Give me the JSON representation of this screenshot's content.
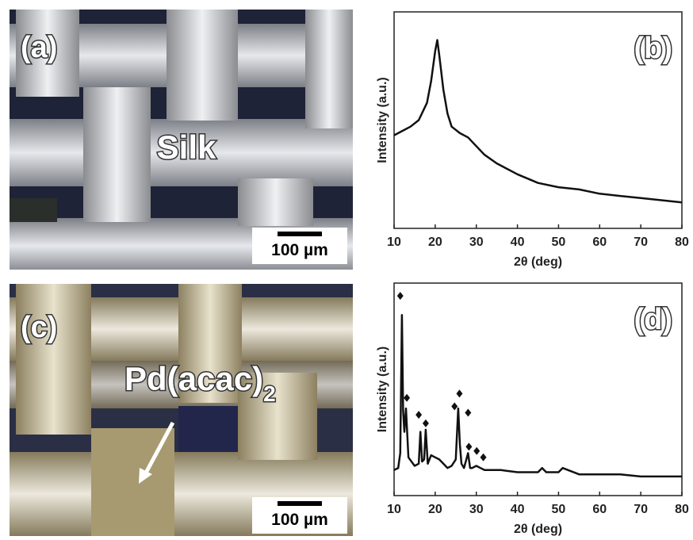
{
  "panels": [
    {
      "panel_label": "(a)",
      "text": "Silk",
      "scale_bar": "100 µm"
    },
    {
      "panel_label": "(c)",
      "text": "Pd(acac)",
      "subscript": "2",
      "scale_bar": "100 µm"
    }
  ],
  "chart_data": [
    {
      "type": "line",
      "panel_label": "(b)",
      "x_label": "2θ (deg)",
      "y_label": "Intensity (a.u.)",
      "x": [
        10,
        12,
        14,
        16,
        18,
        19,
        20,
        20.5,
        21,
        22,
        23,
        24,
        26,
        28,
        30,
        32,
        35,
        40,
        45,
        50,
        55,
        60,
        65,
        70,
        75,
        80
      ],
      "series": [
        {
          "color": "#111111",
          "values": [
            43,
            45,
            47,
            50,
            58,
            68,
            82,
            87,
            80,
            64,
            53,
            47,
            44,
            42,
            38,
            34,
            30,
            25,
            21,
            19,
            18,
            16,
            15,
            14,
            13,
            12
          ]
        }
      ],
      "xlim": [
        10,
        80
      ],
      "ylim": [
        0,
        100
      ],
      "xticks": [
        10,
        20,
        30,
        40,
        50,
        60,
        70,
        80
      ]
    },
    {
      "type": "line",
      "panel_label": "(d)",
      "x_label": "2θ (deg)",
      "y_label": "Intensity (a.u.)",
      "x": [
        10,
        11,
        11.5,
        11.9,
        12.2,
        12.5,
        12.9,
        13.5,
        15,
        16,
        16.4,
        16.8,
        17.3,
        17.7,
        18.2,
        19,
        20,
        21,
        22,
        23,
        24,
        25,
        25.6,
        26,
        26.4,
        27,
        28,
        28.5,
        29,
        30,
        31,
        32,
        34,
        36,
        40,
        45,
        46,
        47,
        50,
        51,
        55,
        60,
        65,
        70,
        75,
        80
      ],
      "series": [
        {
          "color": "#111111",
          "values": [
            12,
            13,
            20,
            85,
            40,
            30,
            41,
            18,
            14,
            15,
            30,
            16,
            17,
            31,
            15,
            19,
            18,
            17,
            15,
            13,
            14,
            17,
            41,
            24,
            15,
            13,
            20,
            13,
            13,
            14,
            13,
            12,
            12,
            12,
            11,
            11,
            13,
            11,
            11,
            13,
            10,
            10,
            10,
            9,
            9,
            9
          ]
        }
      ],
      "peak_markers": {
        "x": [
          11.5,
          13.1,
          16.0,
          17.7,
          24.7,
          25.9,
          28.0,
          28.2,
          30.1,
          31.7
        ],
        "values": [
          94,
          46,
          38,
          34,
          42,
          48,
          39,
          23,
          21,
          18
        ]
      },
      "xlim": [
        10,
        80
      ],
      "ylim": [
        0,
        100
      ],
      "xticks": [
        10,
        20,
        30,
        40,
        50,
        60,
        70,
        80
      ]
    }
  ]
}
